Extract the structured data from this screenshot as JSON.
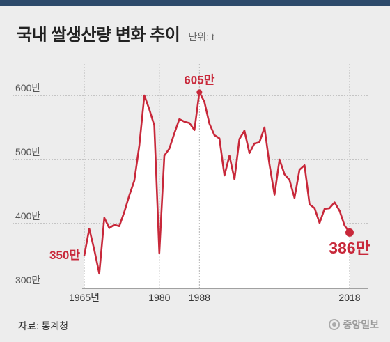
{
  "header": {
    "title": "국내 쌀생산량 변화 추이",
    "unit": "단위: t"
  },
  "footer": {
    "source": "자료: 통계청",
    "logo_text": "중앙일보"
  },
  "colors": {
    "line": "#c8283a",
    "area": "#ffffff",
    "grid": "#9a9a9a",
    "background": "#ededed",
    "topbar": "#2d4a6b"
  },
  "chart_data": {
    "type": "area",
    "title": "국내 쌀생산량 변화 추이",
    "ylabel": "단위: t",
    "ylim": [
      300,
      615
    ],
    "grid": true,
    "y_ticks": [
      "300만",
      "400만",
      "500만",
      "600만"
    ],
    "x_ticks": [
      "1965년",
      "1980",
      "1988",
      "2018"
    ],
    "x_tick_values": [
      1965,
      1980,
      1988,
      2018
    ],
    "x": [
      1965,
      1966,
      1967,
      1968,
      1969,
      1970,
      1971,
      1972,
      1973,
      1974,
      1975,
      1976,
      1977,
      1978,
      1979,
      1980,
      1981,
      1982,
      1983,
      1984,
      1985,
      1986,
      1987,
      1988,
      1989,
      1990,
      1991,
      1992,
      1993,
      1994,
      1995,
      1996,
      1997,
      1998,
      1999,
      2000,
      2001,
      2002,
      2003,
      2004,
      2005,
      2006,
      2007,
      2008,
      2009,
      2010,
      2011,
      2012,
      2013,
      2014,
      2015,
      2016,
      2017,
      2018
    ],
    "values": [
      350,
      392,
      359,
      322,
      409,
      393,
      398,
      396,
      418,
      444,
      467,
      522,
      600,
      578,
      553,
      354,
      506,
      517,
      541,
      563,
      559,
      557,
      546,
      605,
      590,
      556,
      538,
      533,
      475,
      506,
      469,
      532,
      545,
      510,
      525,
      527,
      550,
      492,
      445,
      500,
      477,
      468,
      440,
      484,
      491,
      430,
      424,
      401,
      423,
      424,
      433,
      420,
      397,
      386
    ],
    "annotations": [
      {
        "label": "350만",
        "x": 1965,
        "value": 350
      },
      {
        "label": "605만",
        "x": 1988,
        "value": 605
      },
      {
        "label": "386만",
        "x": 2018,
        "value": 386
      }
    ]
  }
}
